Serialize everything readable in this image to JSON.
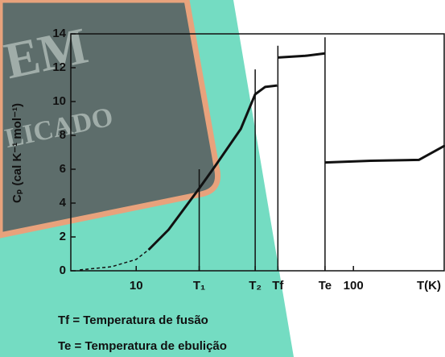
{
  "background": {
    "texts": [
      "EM",
      "LICADO"
    ]
  },
  "chart_data": {
    "type": "line",
    "y_label": "Cₚ (cal K⁻¹ mol⁻¹)",
    "x_label": "T(K)",
    "xlim": [
      5,
      264
    ],
    "log_x": true,
    "xticks": [
      10,
      {
        "value": 19.5,
        "label": "T₁"
      },
      {
        "value": 35.3,
        "label": "T₂"
      },
      {
        "value": 44.9,
        "label": "Tf"
      },
      {
        "value": 74,
        "label": "Te"
      },
      100
    ],
    "ylim": [
      0,
      14
    ],
    "yticks": [
      0,
      2,
      4,
      6,
      8,
      10,
      12,
      14
    ],
    "series": [
      {
        "color": "#111111",
        "dashed": true,
        "x": [
          5.5,
          7.7,
          10,
          11.4
        ],
        "values": [
          0.05,
          0.24,
          0.67,
          1.24
        ]
      },
      {
        "color": "#111111",
        "dashed": false,
        "x": [
          11.4,
          14.1,
          19.5,
          23.4,
          30.3,
          35.3,
          39.2,
          44.5,
          null,
          44.9,
          60,
          74,
          null,
          74,
          120,
          200,
          264
        ],
        "values": [
          1.24,
          2.43,
          4.86,
          6.29,
          8.38,
          10.43,
          10.86,
          10.95,
          null,
          12.6,
          12.7,
          12.85,
          null,
          6.4,
          6.5,
          6.55,
          7.4
        ]
      }
    ],
    "vlines": [
      {
        "x": 19.5,
        "y": 6
      },
      {
        "x": 35.3,
        "y": 11.9
      },
      {
        "x": 44.9,
        "y": 13.3
      },
      {
        "x": 74,
        "y": 13.8
      }
    ],
    "notes": [
      "Tf = Temperatura de fusão",
      "Te = Temperatura de ebulição"
    ]
  }
}
